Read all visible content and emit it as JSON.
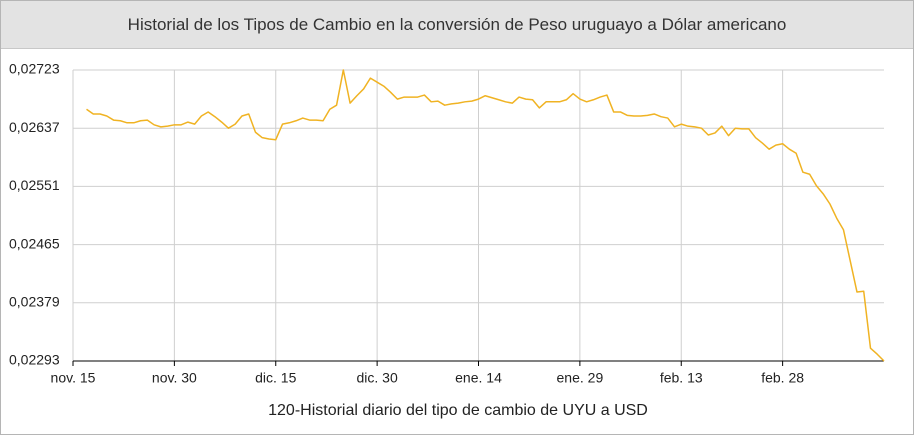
{
  "chart_data": {
    "type": "line",
    "title": "Historial de los Tipos de Cambio en la conversión de Peso uruguayo a Dólar americano",
    "x_label": "120-Historial diario del tipo de cambio de UYU a USD",
    "color": "#f0b323",
    "grid": true,
    "categories": [
      "nov. 15",
      null,
      null,
      null,
      null,
      null,
      null,
      null,
      null,
      null,
      null,
      null,
      null,
      null,
      null,
      "nov. 30",
      null,
      null,
      null,
      null,
      null,
      null,
      null,
      null,
      null,
      null,
      null,
      null,
      null,
      null,
      "dic. 15",
      null,
      null,
      null,
      null,
      null,
      null,
      null,
      null,
      null,
      null,
      null,
      null,
      null,
      null,
      "dic. 30",
      null,
      null,
      null,
      null,
      null,
      null,
      null,
      null,
      null,
      null,
      null,
      null,
      null,
      null,
      "ene. 14",
      null,
      null,
      null,
      null,
      null,
      null,
      null,
      null,
      null,
      null,
      null,
      null,
      null,
      null,
      "ene. 29",
      null,
      null,
      null,
      null,
      null,
      null,
      null,
      null,
      null,
      null,
      null,
      null,
      null,
      null,
      "feb. 13",
      null,
      null,
      null,
      null,
      null,
      null,
      null,
      null,
      null,
      null,
      null,
      null,
      null,
      null,
      "feb. 28",
      null,
      null,
      null,
      null,
      null,
      null,
      null,
      null,
      null,
      null,
      null,
      null,
      null,
      null,
      null
    ],
    "values": [
      null,
      null,
      0.02665,
      0.02658,
      0.02658,
      0.02655,
      0.02649,
      0.02648,
      0.02645,
      0.02645,
      0.02648,
      0.02649,
      0.02642,
      0.02639,
      0.0264,
      0.02642,
      0.02642,
      0.02646,
      0.02643,
      0.02655,
      0.02661,
      0.02654,
      0.02646,
      0.02637,
      0.02643,
      0.02655,
      0.02658,
      0.02631,
      0.02623,
      0.02621,
      0.0262,
      0.02643,
      0.02645,
      0.02648,
      0.02652,
      0.02649,
      0.02649,
      0.02648,
      0.02665,
      0.02671,
      0.02723,
      0.02674,
      0.02685,
      0.02695,
      0.02711,
      0.02705,
      0.02699,
      0.0269,
      0.0268,
      0.02683,
      0.02683,
      0.02683,
      0.02686,
      0.02676,
      0.02677,
      0.02671,
      0.02673,
      0.02674,
      0.02676,
      0.02677,
      0.0268,
      0.02685,
      0.02682,
      0.02679,
      0.02676,
      0.02674,
      0.02683,
      0.0268,
      0.02679,
      0.02667,
      0.02676,
      0.02676,
      0.02676,
      0.02679,
      0.02688,
      0.0268,
      0.02676,
      0.02679,
      0.02683,
      0.02686,
      0.02661,
      0.02661,
      0.02656,
      0.02655,
      0.02655,
      0.02656,
      0.02658,
      0.02654,
      0.02652,
      0.02639,
      0.02643,
      0.0264,
      0.02639,
      0.02637,
      0.02627,
      0.0263,
      0.0264,
      0.02626,
      0.02637,
      0.02636,
      0.02636,
      0.02623,
      0.02615,
      0.02606,
      0.02612,
      0.02614,
      0.02606,
      0.026,
      0.02572,
      0.02569,
      0.02552,
      0.0254,
      0.02525,
      0.02504,
      0.02487,
      0.02441,
      0.02395,
      0.02396,
      0.02312,
      0.02303,
      0.02293
    ],
    "ylim": [
      0.02293,
      0.02723
    ],
    "yticks": [
      {
        "value": 0.02293,
        "label": "0,02293"
      },
      {
        "value": 0.02379,
        "label": "0,02379"
      },
      {
        "value": 0.02465,
        "label": "0,02465"
      },
      {
        "value": 0.02551,
        "label": "0,02551"
      },
      {
        "value": 0.02637,
        "label": "0,02637"
      },
      {
        "value": 0.02723,
        "label": "0,02723"
      }
    ]
  }
}
